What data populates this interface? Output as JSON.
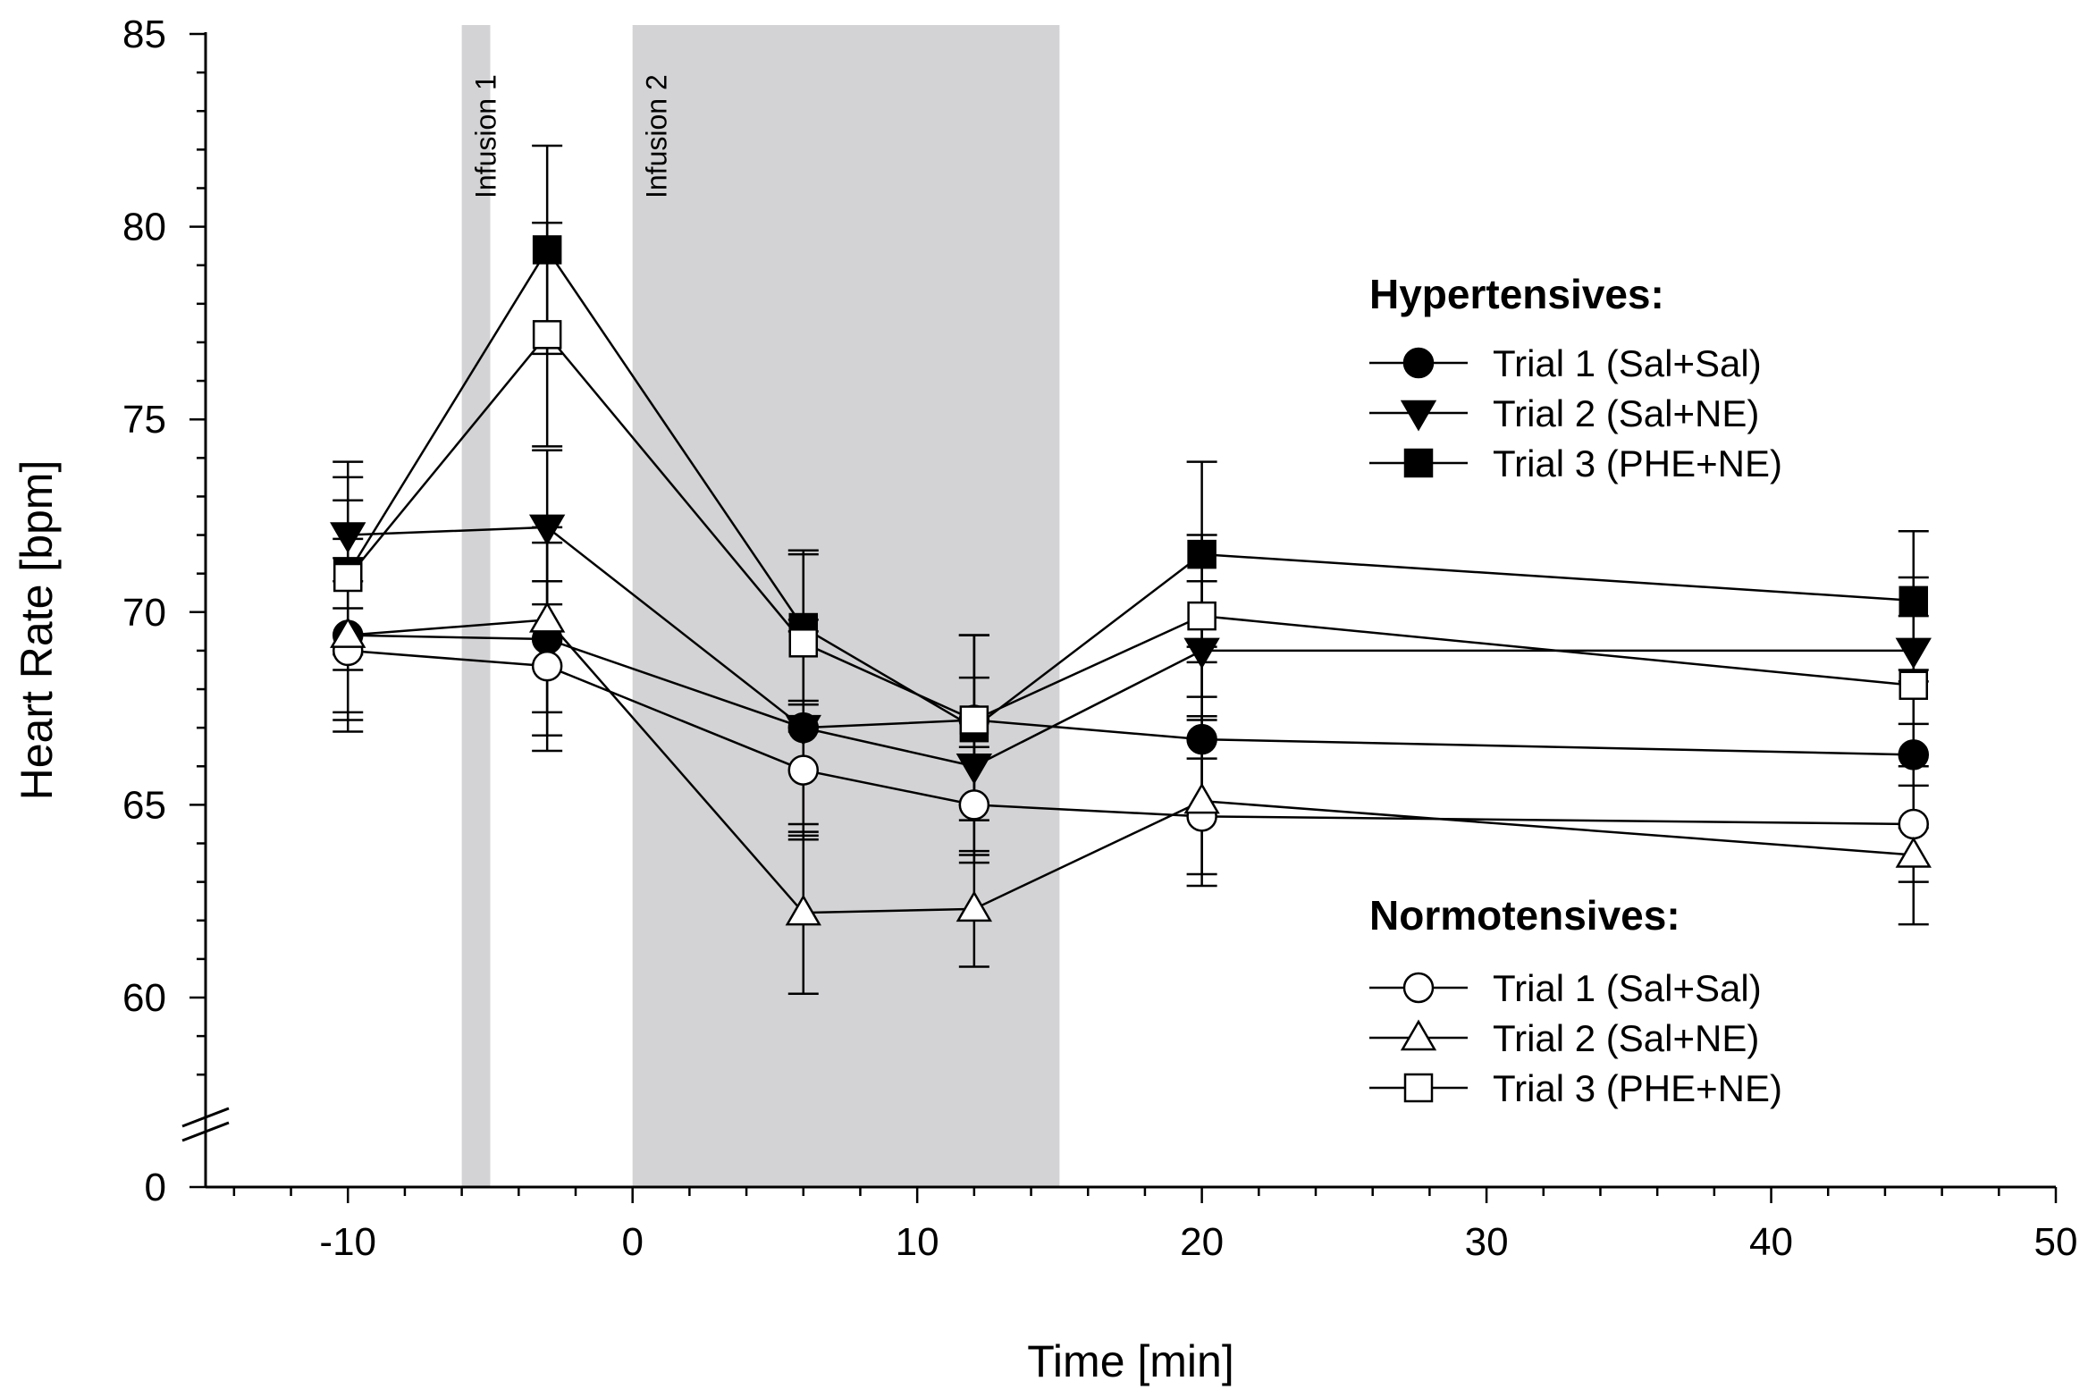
{
  "chart_data": {
    "type": "line",
    "xlabel": "Time [min]",
    "ylabel": "Heart Rate [bpm]",
    "xlim": [
      -15,
      50
    ],
    "ylim": [
      57.5,
      85
    ],
    "x_ticks": [
      -10,
      0,
      10,
      20,
      30,
      40,
      50
    ],
    "x_tick_labels": [
      "-10",
      "0",
      "10",
      "20",
      "30",
      "40",
      "50"
    ],
    "y_ticks": [
      60,
      65,
      70,
      75,
      80,
      85
    ],
    "y_tick_labels": [
      "60",
      "65",
      "70",
      "75",
      "80",
      "85"
    ],
    "y_break_label": "0",
    "shaded_regions": [
      {
        "label": "Infusion 1",
        "x_start": -6,
        "x_end": -5
      },
      {
        "label": "Infusion 2",
        "x_start": 0,
        "x_end": 15
      }
    ],
    "x": [
      -10,
      -3,
      6,
      12,
      20,
      45
    ],
    "legend_groups": [
      {
        "title": "Hypertensives:",
        "series_indices": [
          0,
          1,
          2
        ]
      },
      {
        "title": "Normotensives:",
        "series_indices": [
          3,
          4,
          5
        ]
      }
    ],
    "series": [
      {
        "name": "Trial 1 (Sal+Sal)",
        "group": "Hypertensives",
        "marker": "circle",
        "filled": true,
        "values": [
          69.4,
          69.3,
          67.0,
          67.2,
          66.7,
          66.3
        ],
        "err": [
          2.0,
          2.5,
          2.8,
          2.2,
          2.0,
          1.9
        ]
      },
      {
        "name": "Trial 2 (Sal+NE)",
        "group": "Hypertensives",
        "marker": "triangle-down",
        "filled": true,
        "values": [
          72.0,
          72.2,
          67.0,
          66.0,
          69.0,
          69.0
        ],
        "err": [
          1.9,
          2.0,
          2.5,
          2.3,
          1.8,
          1.9
        ]
      },
      {
        "name": "Trial 3 (PHE+NE)",
        "group": "Hypertensives",
        "marker": "square",
        "filled": true,
        "values": [
          71.0,
          79.4,
          69.6,
          67.0,
          71.5,
          70.3
        ],
        "err": [
          2.5,
          2.7,
          2.0,
          2.4,
          2.4,
          1.8
        ]
      },
      {
        "name": "Trial 1 (Sal+Sal)",
        "group": "Normotensives",
        "marker": "circle",
        "filled": false,
        "values": [
          69.0,
          68.6,
          65.9,
          65.0,
          64.7,
          64.5
        ],
        "err": [
          1.8,
          2.2,
          1.8,
          1.5,
          1.5,
          1.5
        ]
      },
      {
        "name": "Trial 2 (Sal+NE)",
        "group": "Normotensives",
        "marker": "triangle-up",
        "filled": false,
        "values": [
          69.4,
          69.8,
          62.2,
          62.3,
          65.1,
          63.7
        ],
        "err": [
          2.5,
          2.4,
          2.1,
          1.5,
          2.2,
          1.8
        ]
      },
      {
        "name": "Trial 3 (PHE+NE)",
        "group": "Normotensives",
        "marker": "square",
        "filled": false,
        "values": [
          70.9,
          77.2,
          69.2,
          67.2,
          69.9,
          68.1
        ],
        "err": [
          2.0,
          2.9,
          2.3,
          2.2,
          2.1,
          1.8
        ]
      }
    ]
  }
}
